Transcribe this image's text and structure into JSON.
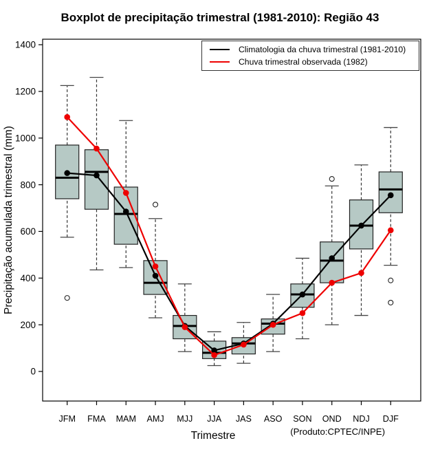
{
  "chart_data": {
    "type": "boxplot",
    "title": "Boxplot de precipitação trimestral (1981-2010): Região 43",
    "xlabel": "Trimestre",
    "ylabel": "Precipitação acumulada trimestral (mm)",
    "source_note": "(Produto:CPTEC/INPE)",
    "categories": [
      "JFM",
      "FMA",
      "MAM",
      "AMJ",
      "MJJ",
      "JJA",
      "JAS",
      "ASO",
      "SON",
      "OND",
      "NDJ",
      "DJF"
    ],
    "yticks": [
      0,
      200,
      400,
      600,
      800,
      1000,
      1200,
      1400
    ],
    "ylim": [
      0,
      1450
    ],
    "grid": false,
    "legend_position": "top-right",
    "box_fill": "#b6c9c5",
    "boxes": [
      {
        "category": "JFM",
        "whisker_low": 575,
        "q1": 740,
        "median": 830,
        "q3": 970,
        "whisker_high": 1225,
        "outliers": [
          315
        ]
      },
      {
        "category": "FMA",
        "whisker_low": 435,
        "q1": 695,
        "median": 855,
        "q3": 950,
        "whisker_high": 1260,
        "outliers": []
      },
      {
        "category": "MAM",
        "whisker_low": 445,
        "q1": 545,
        "median": 675,
        "q3": 790,
        "whisker_high": 1075,
        "outliers": []
      },
      {
        "category": "AMJ",
        "whisker_low": 230,
        "q1": 330,
        "median": 380,
        "q3": 475,
        "whisker_high": 655,
        "outliers": [
          715
        ]
      },
      {
        "category": "MJJ",
        "whisker_low": 85,
        "q1": 140,
        "median": 195,
        "q3": 240,
        "whisker_high": 375,
        "outliers": []
      },
      {
        "category": "JJA",
        "whisker_low": 25,
        "q1": 55,
        "median": 80,
        "q3": 130,
        "whisker_high": 170,
        "outliers": []
      },
      {
        "category": "JAS",
        "whisker_low": 35,
        "q1": 75,
        "median": 120,
        "q3": 145,
        "whisker_high": 210,
        "outliers": []
      },
      {
        "category": "ASO",
        "whisker_low": 85,
        "q1": 160,
        "median": 205,
        "q3": 225,
        "whisker_high": 330,
        "outliers": []
      },
      {
        "category": "SON",
        "whisker_low": 140,
        "q1": 275,
        "median": 330,
        "q3": 375,
        "whisker_high": 485,
        "outliers": []
      },
      {
        "category": "OND",
        "whisker_low": 200,
        "q1": 380,
        "median": 475,
        "q3": 555,
        "whisker_high": 795,
        "outliers": [
          825
        ]
      },
      {
        "category": "NDJ",
        "whisker_low": 240,
        "q1": 525,
        "median": 625,
        "q3": 735,
        "whisker_high": 885,
        "outliers": []
      },
      {
        "category": "DJF",
        "whisker_low": 455,
        "q1": 680,
        "median": 780,
        "q3": 855,
        "whisker_high": 1045,
        "outliers": [
          390,
          295
        ]
      }
    ],
    "series": [
      {
        "name": "Climatologia da chuva trimestral (1981-2010)",
        "color": "#000000",
        "values": [
          850,
          840,
          685,
          410,
          195,
          90,
          120,
          205,
          330,
          485,
          625,
          755
        ]
      },
      {
        "name": "Chuva trimestral observada (1982)",
        "color": "#ee0000",
        "values": [
          1090,
          955,
          765,
          450,
          190,
          70,
          115,
          200,
          250,
          380,
          422,
          605
        ]
      }
    ]
  }
}
